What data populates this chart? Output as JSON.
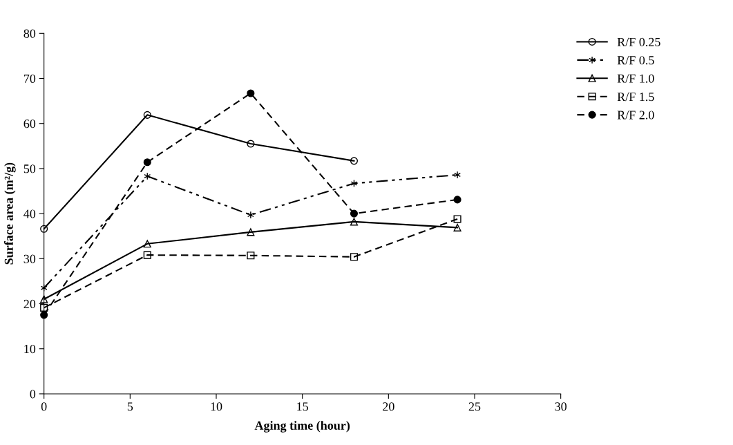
{
  "chart_data": {
    "type": "line",
    "xlabel": "Aging time (hour)",
    "ylabel": "Surface area (m²/g)",
    "x": [
      0,
      6,
      12,
      18,
      24
    ],
    "series": [
      {
        "name": "R/F 0.25",
        "color": "#000000",
        "values": [
          36.6,
          61.9,
          55.5,
          51.7,
          null
        ],
        "marker": "circle",
        "line_style": "solid"
      },
      {
        "name": "R/F 0.5",
        "color": "#000000",
        "values": [
          23.5,
          48.3,
          39.7,
          46.7,
          48.6
        ],
        "marker": "cross",
        "line_style": "dashdotdot"
      },
      {
        "name": "R/F 1.0",
        "color": "#000000",
        "values": [
          21.0,
          33.3,
          35.9,
          38.2,
          36.9
        ],
        "marker": "triangle",
        "line_style": "solid"
      },
      {
        "name": "R/F 1.5",
        "color": "#000000",
        "values": [
          19.1,
          30.8,
          30.7,
          30.4,
          38.8
        ],
        "marker": "square",
        "line_style": "dashed"
      },
      {
        "name": "R/F 2.0",
        "color": "#000000",
        "values": [
          17.5,
          51.4,
          66.7,
          40.0,
          43.1
        ],
        "marker": "filled circle",
        "line_style": "dashed"
      }
    ],
    "xlim": [
      0,
      30
    ],
    "xticks": [
      0,
      5,
      10,
      15,
      20,
      25,
      30
    ],
    "ylim": [
      0,
      80
    ],
    "yticks": [
      0,
      10,
      20,
      30,
      40,
      50,
      60,
      70,
      80
    ],
    "grid": false,
    "legend": "right"
  }
}
